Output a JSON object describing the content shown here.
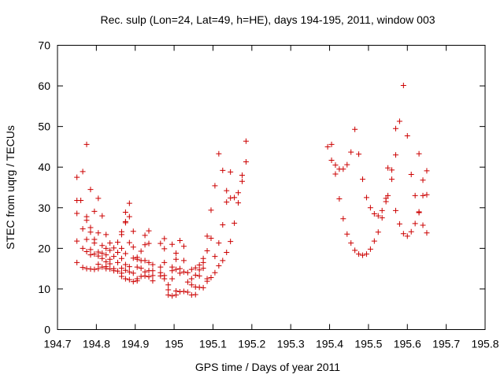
{
  "chart_data": {
    "type": "scatter",
    "title": "Rec. sulp (Lon=24, Lat=49, h=HE), days 194-195, 2011, window 003",
    "xlabel": "GPS time / Days of year 2011",
    "ylabel": "STEC from uqrg / TECUs",
    "xlim": [
      194.7,
      195.8
    ],
    "ylim": [
      0,
      70
    ],
    "x_ticks": [
      194.7,
      194.8,
      194.9,
      195.0,
      195.1,
      195.2,
      195.3,
      195.4,
      195.5,
      195.6,
      195.7,
      195.8
    ],
    "x_tick_labels": [
      "194.7",
      "194.8",
      "194.9",
      "195",
      "195.1",
      "195.2",
      "195.3",
      "195.4",
      "195.5",
      "195.6",
      "195.7",
      "195.8"
    ],
    "y_ticks": [
      0,
      10,
      20,
      30,
      40,
      50,
      60,
      70
    ],
    "y_tick_labels": [
      "0",
      "10",
      "20",
      "30",
      "40",
      "50",
      "60",
      "70"
    ],
    "marker": "plus",
    "marker_color": "#cc0000",
    "grid": false,
    "series": [
      {
        "name": "STEC",
        "points": [
          [
            194.75,
            37.5
          ],
          [
            194.75,
            31.8
          ],
          [
            194.75,
            28.6
          ],
          [
            194.75,
            21.8
          ],
          [
            194.75,
            16.5
          ],
          [
            194.76,
            31.8
          ],
          [
            194.765,
            38.9
          ],
          [
            194.765,
            24.8
          ],
          [
            194.765,
            20.0
          ],
          [
            194.765,
            15.3
          ],
          [
            194.775,
            45.6
          ],
          [
            194.775,
            27.8
          ],
          [
            194.775,
            26.9
          ],
          [
            194.775,
            22.2
          ],
          [
            194.775,
            19.2
          ],
          [
            194.775,
            15.0
          ],
          [
            194.785,
            34.5
          ],
          [
            194.785,
            25.1
          ],
          [
            194.785,
            24.0
          ],
          [
            194.785,
            19.7
          ],
          [
            194.785,
            18.4
          ],
          [
            194.785,
            14.9
          ],
          [
            194.795,
            29.1
          ],
          [
            194.795,
            22.2
          ],
          [
            194.795,
            21.3
          ],
          [
            194.795,
            18.6
          ],
          [
            194.795,
            14.8
          ],
          [
            194.805,
            32.3
          ],
          [
            194.805,
            23.8
          ],
          [
            194.805,
            19.1
          ],
          [
            194.805,
            18.1
          ],
          [
            194.805,
            16.1
          ],
          [
            194.805,
            15.0
          ],
          [
            194.815,
            28.0
          ],
          [
            194.815,
            20.7
          ],
          [
            194.815,
            18.8
          ],
          [
            194.815,
            17.5
          ],
          [
            194.815,
            15.4
          ],
          [
            194.825,
            23.4
          ],
          [
            194.825,
            20.0
          ],
          [
            194.825,
            18.4
          ],
          [
            194.825,
            16.7
          ],
          [
            194.825,
            15.5
          ],
          [
            194.825,
            15.0
          ],
          [
            194.835,
            21.3
          ],
          [
            194.835,
            19.5
          ],
          [
            194.835,
            17.3
          ],
          [
            194.835,
            16.2
          ],
          [
            194.835,
            14.9
          ],
          [
            194.845,
            20.1
          ],
          [
            194.845,
            18.0
          ],
          [
            194.845,
            15.0
          ],
          [
            194.845,
            14.5
          ],
          [
            194.855,
            21.5
          ],
          [
            194.855,
            19.0
          ],
          [
            194.855,
            16.5
          ],
          [
            194.855,
            14.4
          ],
          [
            194.865,
            24.1
          ],
          [
            194.865,
            23.4
          ],
          [
            194.865,
            20.0
          ],
          [
            194.865,
            17.5
          ],
          [
            194.865,
            15.1
          ],
          [
            194.865,
            13.9
          ],
          [
            194.865,
            13.1
          ],
          [
            194.875,
            28.9
          ],
          [
            194.875,
            26.6
          ],
          [
            194.875,
            26.3
          ],
          [
            194.875,
            18.7
          ],
          [
            194.875,
            16.0
          ],
          [
            194.875,
            14.6
          ],
          [
            194.875,
            12.5
          ],
          [
            194.885,
            31.1
          ],
          [
            194.885,
            27.8
          ],
          [
            194.885,
            21.4
          ],
          [
            194.885,
            15.5
          ],
          [
            194.885,
            14.2
          ],
          [
            194.885,
            12.3
          ],
          [
            194.895,
            24.2
          ],
          [
            194.895,
            20.3
          ],
          [
            194.895,
            17.6
          ],
          [
            194.895,
            13.9
          ],
          [
            194.895,
            11.8
          ],
          [
            194.905,
            17.8
          ],
          [
            194.905,
            17.3
          ],
          [
            194.905,
            15.4
          ],
          [
            194.905,
            12.5
          ],
          [
            194.905,
            12.0
          ],
          [
            194.915,
            19.3
          ],
          [
            194.915,
            17.0
          ],
          [
            194.915,
            15.1
          ],
          [
            194.915,
            13.1
          ],
          [
            194.925,
            23.2
          ],
          [
            194.925,
            20.9
          ],
          [
            194.925,
            17.0
          ],
          [
            194.925,
            14.2
          ],
          [
            194.925,
            13.2
          ],
          [
            194.935,
            24.3
          ],
          [
            194.935,
            21.2
          ],
          [
            194.935,
            16.5
          ],
          [
            194.935,
            14.5
          ],
          [
            194.935,
            13.0
          ],
          [
            194.945,
            16.0
          ],
          [
            194.945,
            14.5
          ],
          [
            194.945,
            13.3
          ],
          [
            194.945,
            12.0
          ],
          [
            194.965,
            21.2
          ],
          [
            194.965,
            15.4
          ],
          [
            194.965,
            14.0
          ],
          [
            194.965,
            13.2
          ],
          [
            194.975,
            22.4
          ],
          [
            194.975,
            19.9
          ],
          [
            194.975,
            16.5
          ],
          [
            194.975,
            13.3
          ],
          [
            194.975,
            12.5
          ],
          [
            194.985,
            11.0
          ],
          [
            194.985,
            9.8
          ],
          [
            194.985,
            8.5
          ],
          [
            194.995,
            21.0
          ],
          [
            194.995,
            15.4
          ],
          [
            194.995,
            14.5
          ],
          [
            194.995,
            12.5
          ],
          [
            194.995,
            8.3
          ],
          [
            195.005,
            18.8
          ],
          [
            195.005,
            17.3
          ],
          [
            195.005,
            14.8
          ],
          [
            195.005,
            9.5
          ],
          [
            195.005,
            8.5
          ],
          [
            195.015,
            21.9
          ],
          [
            195.015,
            15.0
          ],
          [
            195.015,
            13.9
          ],
          [
            195.015,
            9.3
          ],
          [
            195.025,
            20.5
          ],
          [
            195.025,
            17.0
          ],
          [
            195.025,
            14.2
          ],
          [
            195.025,
            9.4
          ],
          [
            195.035,
            14.0
          ],
          [
            195.035,
            11.7
          ],
          [
            195.035,
            9.2
          ],
          [
            195.045,
            14.8
          ],
          [
            195.045,
            12.5
          ],
          [
            195.045,
            11.0
          ],
          [
            195.045,
            8.5
          ],
          [
            195.055,
            15.2
          ],
          [
            195.055,
            13.4
          ],
          [
            195.055,
            10.5
          ],
          [
            195.055,
            8.6
          ],
          [
            195.065,
            15.9
          ],
          [
            195.065,
            14.7
          ],
          [
            195.065,
            13.2
          ],
          [
            195.065,
            10.4
          ],
          [
            195.075,
            17.5
          ],
          [
            195.075,
            16.5
          ],
          [
            195.075,
            15.1
          ],
          [
            195.075,
            10.3
          ],
          [
            195.085,
            23.0
          ],
          [
            195.085,
            19.4
          ],
          [
            195.085,
            12.5
          ],
          [
            195.085,
            11.9
          ],
          [
            195.095,
            29.4
          ],
          [
            195.095,
            22.5
          ],
          [
            195.095,
            12.8
          ],
          [
            195.105,
            35.4
          ],
          [
            195.105,
            18.0
          ],
          [
            195.105,
            14.0
          ],
          [
            195.115,
            43.3
          ],
          [
            195.115,
            21.3
          ],
          [
            195.115,
            15.7
          ],
          [
            195.125,
            39.2
          ],
          [
            195.125,
            25.8
          ],
          [
            195.125,
            17.0
          ],
          [
            195.135,
            34.2
          ],
          [
            195.135,
            31.4
          ],
          [
            195.135,
            19.0
          ],
          [
            195.145,
            38.8
          ],
          [
            195.145,
            32.4
          ],
          [
            195.145,
            21.7
          ],
          [
            195.155,
            32.5
          ],
          [
            195.155,
            26.2
          ],
          [
            195.165,
            33.7
          ],
          [
            195.165,
            31.2
          ],
          [
            195.175,
            38.0
          ],
          [
            195.175,
            36.5
          ],
          [
            195.185,
            46.4
          ],
          [
            195.185,
            41.3
          ],
          [
            195.395,
            45.0
          ],
          [
            195.405,
            45.6
          ],
          [
            195.405,
            41.7
          ],
          [
            195.415,
            40.5
          ],
          [
            195.415,
            38.3
          ],
          [
            195.425,
            39.5
          ],
          [
            195.425,
            32.2
          ],
          [
            195.435,
            39.5
          ],
          [
            195.435,
            27.3
          ],
          [
            195.445,
            40.6
          ],
          [
            195.445,
            23.5
          ],
          [
            195.455,
            43.7
          ],
          [
            195.455,
            21.3
          ],
          [
            195.465,
            49.3
          ],
          [
            195.465,
            19.5
          ],
          [
            195.475,
            43.2
          ],
          [
            195.475,
            18.6
          ],
          [
            195.485,
            37.0
          ],
          [
            195.485,
            18.3
          ],
          [
            195.495,
            32.5
          ],
          [
            195.495,
            18.6
          ],
          [
            195.505,
            30.0
          ],
          [
            195.505,
            19.8
          ],
          [
            195.515,
            28.5
          ],
          [
            195.515,
            21.8
          ],
          [
            195.525,
            28.0
          ],
          [
            195.525,
            24.0
          ],
          [
            195.535,
            29.3
          ],
          [
            195.535,
            27.5
          ],
          [
            195.545,
            32.3
          ],
          [
            195.545,
            31.5
          ],
          [
            195.55,
            39.8
          ],
          [
            195.55,
            33.0
          ],
          [
            195.56,
            39.3
          ],
          [
            195.56,
            37.0
          ],
          [
            195.57,
            49.5
          ],
          [
            195.57,
            43.0
          ],
          [
            195.57,
            29.3
          ],
          [
            195.58,
            51.3
          ],
          [
            195.58,
            26.0
          ],
          [
            195.59,
            60.1
          ],
          [
            195.59,
            23.6
          ],
          [
            195.6,
            47.7
          ],
          [
            195.6,
            23.0
          ],
          [
            195.61,
            38.2
          ],
          [
            195.61,
            24.1
          ],
          [
            195.62,
            33.0
          ],
          [
            195.62,
            26.1
          ],
          [
            195.63,
            43.3
          ],
          [
            195.63,
            29.0
          ],
          [
            195.63,
            28.8
          ],
          [
            195.64,
            36.8
          ],
          [
            195.64,
            33.0
          ],
          [
            195.64,
            25.7
          ],
          [
            195.65,
            39.1
          ],
          [
            195.65,
            33.2
          ],
          [
            195.65,
            23.8
          ]
        ]
      }
    ]
  }
}
